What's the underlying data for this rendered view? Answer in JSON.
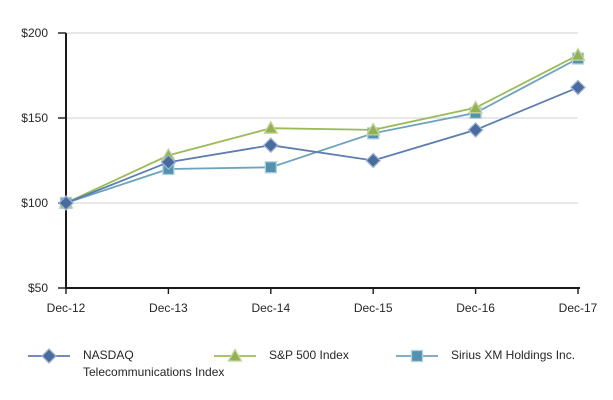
{
  "chart_data": {
    "type": "line",
    "title": "",
    "xlabel": "",
    "ylabel": "",
    "categories": [
      "Dec-12",
      "Dec-13",
      "Dec-14",
      "Dec-15",
      "Dec-16",
      "Dec-17"
    ],
    "series": [
      {
        "name": "NASDAQ Telecommunications Index",
        "legend_label": "NASDAQ\nTelecommunications Index",
        "values": [
          100,
          124,
          134,
          125,
          143,
          168
        ],
        "marker": "diamond",
        "line_color": "#5b7db1",
        "marker_fill": "#4a6b9d",
        "marker_border": "#9db3d1"
      },
      {
        "name": "S&P 500 Index",
        "legend_label": "S&P 500 Index",
        "values": [
          100,
          128,
          144,
          143,
          156,
          187
        ],
        "marker": "triangle",
        "line_color": "#9bbb59",
        "marker_fill": "#94b054",
        "marker_border": "#c3d69b"
      },
      {
        "name": "Sirius XM Holdings Inc.",
        "legend_label": "Sirius XM Holdings Inc.",
        "values": [
          100,
          120,
          121,
          141,
          153,
          185
        ],
        "marker": "square",
        "line_color": "#6da3bd",
        "marker_fill": "#5491ae",
        "marker_border": "#afd0dc"
      }
    ],
    "y_ticks": [
      {
        "value": 50,
        "label": "$50"
      },
      {
        "value": 100,
        "label": "$100"
      },
      {
        "value": 150,
        "label": "$150"
      },
      {
        "value": 200,
        "label": "$200"
      }
    ],
    "ylim": [
      50,
      200
    ],
    "grid": true,
    "gridline_values": [
      100,
      150,
      200
    ],
    "legend_position": "bottom",
    "colors": {
      "axis": "#1a1a1a",
      "gridline": "#d9d9d9",
      "tick_label": "#262626"
    }
  }
}
